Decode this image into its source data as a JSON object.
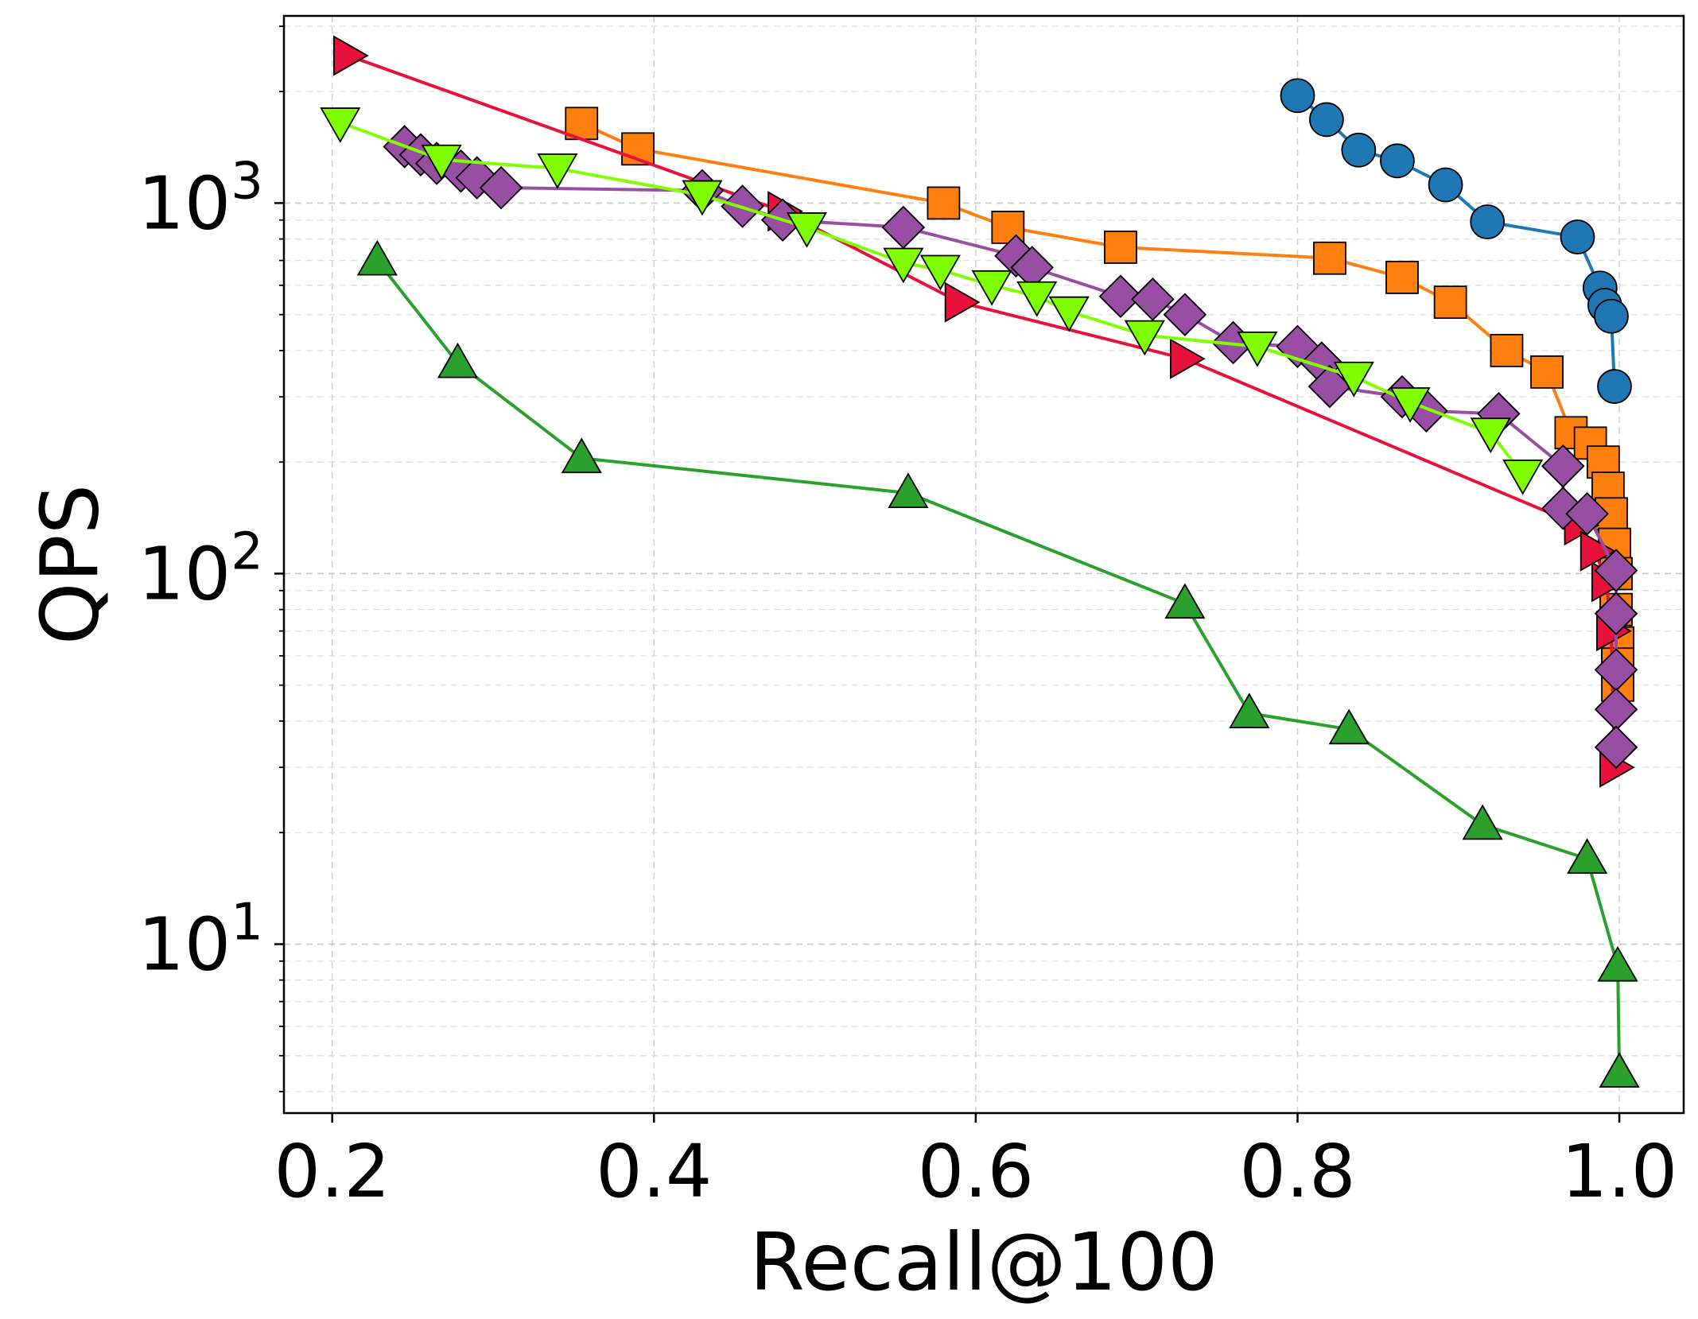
{
  "chart_data": {
    "type": "line",
    "title": "",
    "xlabel": "Recall@100",
    "ylabel": "QPS",
    "xlim": [
      0.17,
      1.04
    ],
    "ylim": [
      3.5,
      3200
    ],
    "yscale": "log",
    "grid": true,
    "x_ticks": [
      0.2,
      0.4,
      0.6,
      0.8,
      1.0
    ],
    "x_tick_labels": [
      "0.2",
      "0.4",
      "0.6",
      "0.8",
      "1.0"
    ],
    "y_ticks": [
      {
        "value": 10,
        "base": "10",
        "exp": "1"
      },
      {
        "value": 100,
        "base": "10",
        "exp": "2"
      },
      {
        "value": 1000,
        "base": "10",
        "exp": "3"
      }
    ],
    "series": [
      {
        "name": "series-blue-circle",
        "color": "#1f77b4",
        "marker": "circle",
        "points": [
          [
            0.8,
            1950
          ],
          [
            0.818,
            1680
          ],
          [
            0.838,
            1390
          ],
          [
            0.862,
            1300
          ],
          [
            0.892,
            1120
          ],
          [
            0.918,
            890
          ],
          [
            0.974,
            810
          ],
          [
            0.988,
            590
          ],
          [
            0.991,
            530
          ],
          [
            0.995,
            495
          ],
          [
            0.997,
            320
          ]
        ]
      },
      {
        "name": "series-orange-square",
        "color": "#ff7f0e",
        "marker": "square",
        "points": [
          [
            0.355,
            1640
          ],
          [
            0.39,
            1400
          ],
          [
            0.58,
            1000
          ],
          [
            0.62,
            860
          ],
          [
            0.69,
            760
          ],
          [
            0.82,
            710
          ],
          [
            0.865,
            630
          ],
          [
            0.895,
            540
          ],
          [
            0.93,
            400
          ],
          [
            0.955,
            350
          ],
          [
            0.97,
            240
          ],
          [
            0.982,
            225
          ],
          [
            0.99,
            200
          ],
          [
            0.993,
            170
          ],
          [
            0.995,
            145
          ],
          [
            0.997,
            120
          ],
          [
            0.998,
            100
          ],
          [
            0.998,
            80
          ],
          [
            0.999,
            65
          ],
          [
            0.999,
            57
          ],
          [
            0.999,
            50
          ]
        ]
      },
      {
        "name": "series-red-triangle-right",
        "color": "#e8113c",
        "marker": "triangle-right",
        "points": [
          [
            0.21,
            2500
          ],
          [
            0.48,
            950
          ],
          [
            0.59,
            540
          ],
          [
            0.73,
            380
          ],
          [
            0.975,
            135
          ],
          [
            0.985,
            115
          ],
          [
            0.992,
            95
          ],
          [
            0.995,
            70
          ],
          [
            0.997,
            30
          ]
        ]
      },
      {
        "name": "series-purple-diamond",
        "color": "#984ea3",
        "marker": "diamond",
        "points": [
          [
            0.245,
            1420
          ],
          [
            0.255,
            1350
          ],
          [
            0.265,
            1280
          ],
          [
            0.28,
            1220
          ],
          [
            0.29,
            1170
          ],
          [
            0.305,
            1100
          ],
          [
            0.43,
            1080
          ],
          [
            0.455,
            980
          ],
          [
            0.48,
            900
          ],
          [
            0.555,
            860
          ],
          [
            0.625,
            720
          ],
          [
            0.635,
            670
          ],
          [
            0.69,
            560
          ],
          [
            0.71,
            550
          ],
          [
            0.73,
            500
          ],
          [
            0.76,
            420
          ],
          [
            0.8,
            410
          ],
          [
            0.815,
            370
          ],
          [
            0.82,
            320
          ],
          [
            0.865,
            300
          ],
          [
            0.88,
            275
          ],
          [
            0.925,
            270
          ],
          [
            0.965,
            195
          ],
          [
            0.965,
            150
          ],
          [
            0.98,
            145
          ],
          [
            0.998,
            102
          ],
          [
            0.998,
            78
          ],
          [
            0.998,
            55
          ],
          [
            0.998,
            43
          ],
          [
            0.998,
            34
          ]
        ]
      },
      {
        "name": "series-lime-triangle-down",
        "color": "#7fff00",
        "marker": "triangle-down",
        "points": [
          [
            0.205,
            1650
          ],
          [
            0.268,
            1310
          ],
          [
            0.34,
            1240
          ],
          [
            0.43,
            1050
          ],
          [
            0.495,
            860
          ],
          [
            0.555,
            690
          ],
          [
            0.578,
            660
          ],
          [
            0.61,
            600
          ],
          [
            0.638,
            560
          ],
          [
            0.658,
            510
          ],
          [
            0.705,
            440
          ],
          [
            0.775,
            410
          ],
          [
            0.835,
            340
          ],
          [
            0.87,
            290
          ],
          [
            0.92,
            240
          ],
          [
            0.94,
            185
          ]
        ]
      },
      {
        "name": "series-green-triangle-up",
        "color": "#2ca02c",
        "marker": "triangle-up",
        "points": [
          [
            0.228,
            700
          ],
          [
            0.278,
            370
          ],
          [
            0.355,
            205
          ],
          [
            0.558,
            165
          ],
          [
            0.73,
            83
          ],
          [
            0.77,
            42
          ],
          [
            0.832,
            38
          ],
          [
            0.915,
            21
          ],
          [
            0.98,
            17
          ],
          [
            0.999,
            8.7
          ],
          [
            1.0,
            4.5
          ]
        ]
      }
    ]
  }
}
